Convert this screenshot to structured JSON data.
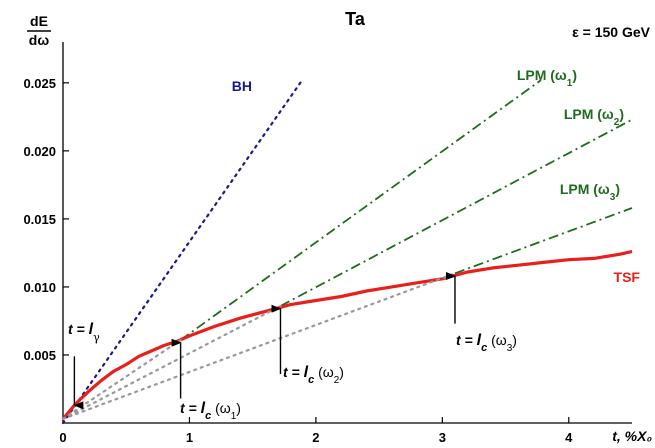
{
  "chart_data": {
    "type": "line",
    "title": "Ta",
    "energy_label": "ε = 150 GeV",
    "ylabel": {
      "numerator": "dE",
      "denominator": "dω"
    },
    "xlabel": "t, %X₀",
    "xlim": [
      0,
      4.5
    ],
    "ylim": [
      0,
      0.028
    ],
    "x_ticks": [
      0,
      1,
      2,
      3,
      4
    ],
    "x_tick_labels": [
      "0",
      "1",
      "2",
      "3",
      "4"
    ],
    "y_ticks": [
      0.005,
      0.01,
      0.015,
      0.02,
      0.025
    ],
    "y_tick_labels": [
      "0.005",
      "0.010",
      "0.015",
      "0.020",
      "0.025"
    ],
    "grid": false,
    "legend": "none",
    "series": [
      {
        "name": "BH",
        "color": "#1a1a8c",
        "style": "dotted",
        "x": [
          0,
          1.9
        ],
        "y": [
          0,
          0.0253
        ]
      },
      {
        "name": "LPM (ω₁)",
        "name_base": "LPM (ω",
        "name_sub": "1",
        "color": "#1f6b1f",
        "style": "dashdot",
        "x": [
          0.93,
          3.78
        ],
        "y": [
          0.0061,
          0.0252
        ]
      },
      {
        "name": "LPM (ω₂)",
        "name_base": "LPM (ω",
        "name_sub": "2",
        "color": "#1f6b1f",
        "style": "dashdot",
        "x": [
          1.72,
          4.5
        ],
        "y": [
          0.0086,
          0.0223
        ]
      },
      {
        "name": "LPM (ω₃)",
        "name_base": "LPM (ω",
        "name_sub": "3",
        "color": "#1f6b1f",
        "style": "dashdot",
        "x": [
          3.1,
          4.5
        ],
        "y": [
          0.011,
          0.0158
        ]
      },
      {
        "name": "TSF",
        "color": "#e8201c",
        "style": "solid",
        "x": [
          0,
          0.1,
          0.2,
          0.3,
          0.4,
          0.5,
          0.6,
          0.7,
          0.8,
          0.9,
          1.0,
          1.2,
          1.4,
          1.6,
          1.8,
          2.0,
          2.2,
          2.4,
          2.6,
          2.8,
          3.0,
          3.2,
          3.4,
          3.6,
          3.8,
          4.0,
          4.2,
          4.4,
          4.5
        ],
        "y": [
          0.0003,
          0.0014,
          0.0023,
          0.0031,
          0.0038,
          0.0043,
          0.0049,
          0.0053,
          0.0057,
          0.006,
          0.0064,
          0.0071,
          0.0077,
          0.0082,
          0.0087,
          0.009,
          0.0093,
          0.0097,
          0.01,
          0.0103,
          0.0106,
          0.0111,
          0.0114,
          0.0116,
          0.0118,
          0.012,
          0.0121,
          0.0124,
          0.0126
        ]
      },
      {
        "name": "",
        "color": "#999999",
        "style": "dotted",
        "x": [
          0,
          0.93
        ],
        "y": [
          0.0003,
          0.0061
        ]
      },
      {
        "name": "",
        "color": "#999999",
        "style": "dotted",
        "x": [
          0,
          1.72
        ],
        "y": [
          0.0003,
          0.0086
        ]
      },
      {
        "name": "",
        "color": "#999999",
        "style": "dotted",
        "x": [
          0,
          3.1
        ],
        "y": [
          0.0003,
          0.011
        ]
      }
    ],
    "annotations": [
      {
        "id": "lgamma",
        "prefix": "t = ",
        "sym": "l",
        "sub": "γ",
        "sub_is_symbol": true,
        "arrow_x": 0.09,
        "arrow_from_y": 0.0049,
        "arrow_to_y": 0.0013
      },
      {
        "id": "lc1",
        "prefix": "t = ",
        "sym": "l",
        "sub": "c",
        "suffix_base": " (ω",
        "suffix_sub": "1",
        "suffix_end": ")",
        "arrow_x": 0.93,
        "arrow_from_y": 0.0018,
        "arrow_to_y": 0.0059
      },
      {
        "id": "lc2",
        "prefix": "t = ",
        "sym": "l",
        "sub": "c",
        "suffix_base": " (ω",
        "suffix_sub": "2",
        "suffix_end": ")",
        "arrow_x": 1.72,
        "arrow_from_y": 0.0036,
        "arrow_to_y": 0.0084
      },
      {
        "id": "lc3",
        "prefix": "t = ",
        "sym": "l",
        "sub": "c",
        "suffix_base": " (ω",
        "suffix_sub": "3",
        "suffix_end": ")",
        "arrow_x": 3.1,
        "arrow_from_y": 0.0073,
        "arrow_to_y": 0.0108
      }
    ]
  }
}
